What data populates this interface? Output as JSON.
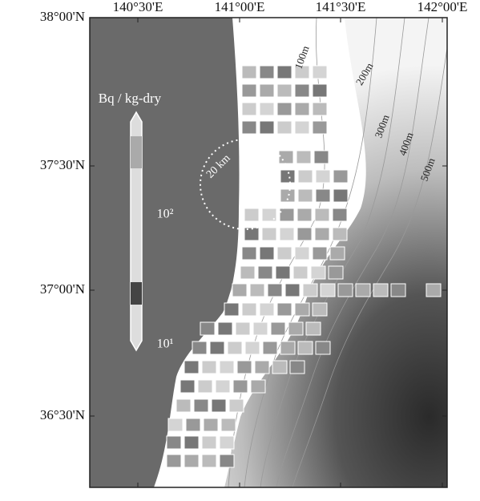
{
  "map": {
    "lon_labels": [
      "140°30'E",
      "141°00'E",
      "141°30'E",
      "142°00'E"
    ],
    "lat_labels": [
      "38°00'N",
      "37°30'N",
      "37°00'N",
      "36°30'N"
    ],
    "colorbar": {
      "title": "Bq / kg-dry",
      "labels": [
        "10²",
        "10¹"
      ]
    },
    "contours": [
      "100m",
      "200m",
      "300m",
      "400m",
      "500m"
    ],
    "radius_label": "20 km"
  }
}
